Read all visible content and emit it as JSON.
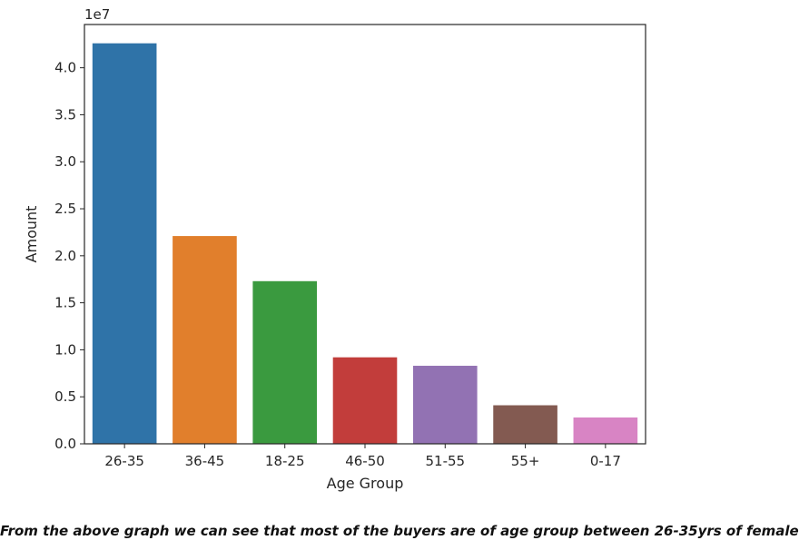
{
  "chart_data": {
    "type": "bar",
    "categories": [
      "26-35",
      "36-45",
      "18-25",
      "46-50",
      "51-55",
      "55+",
      "0-17"
    ],
    "values": [
      42600000,
      22100000,
      17300000,
      9200000,
      8300000,
      4100000,
      2800000
    ],
    "colors": [
      "#2f73a8",
      "#e17f2c",
      "#3a9a3f",
      "#c23d3b",
      "#9272b3",
      "#835a51",
      "#d884c4"
    ],
    "xlabel": "Age Group",
    "ylabel": "Amount",
    "ylim": [
      0,
      44600000
    ],
    "yticks": [
      0,
      5000000,
      10000000,
      15000000,
      20000000,
      25000000,
      30000000,
      35000000,
      40000000
    ],
    "ytick_labels": [
      "0.0",
      "0.5",
      "1.0",
      "1.5",
      "2.0",
      "2.5",
      "3.0",
      "3.5",
      "4.0"
    ],
    "offset_label": "1e7",
    "grid": false,
    "legend": "none"
  },
  "caption": "From the above graph we can see that most of the buyers are of age group between 26-35yrs of female"
}
